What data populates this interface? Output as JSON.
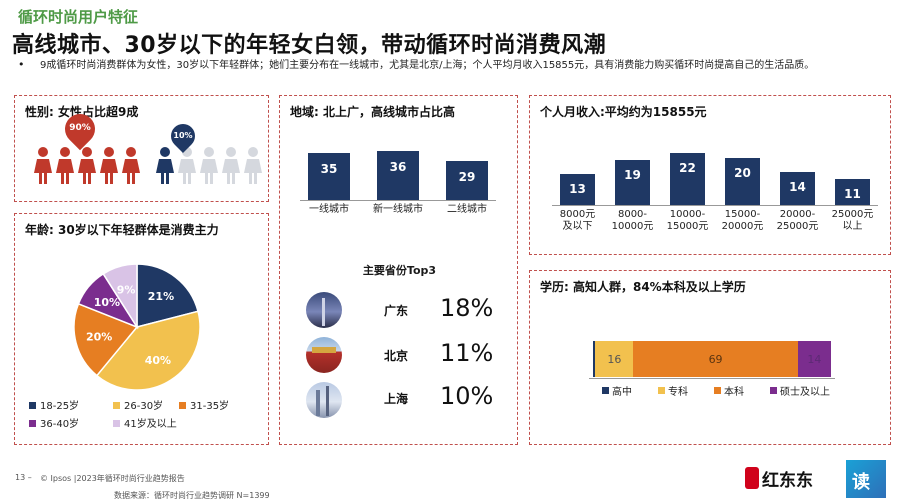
{
  "header": {
    "tag": "循环时尚用户特征",
    "title": "高线城市、30岁以下的年轻女白领，带动循环时尚消费风潮",
    "bullet": "•",
    "summary": "9成循环时尚消费群体为女性，30岁以下年轻群体；她们主要分布在一线城市，尤其是北京/上海；个人平均月收入15855元，具有消费能力购买循环时尚提高自己的生活品质。"
  },
  "gender": {
    "title": "性别: 女性占比超9成",
    "female_pct": "90%",
    "male_pct": "10%",
    "female_color": "#c0392b",
    "male_color": "#1f3864"
  },
  "region": {
    "title": "地域: 北上广，高线城市占比高",
    "top3_title": "主要省份Top3",
    "provinces": [
      {
        "name": "广东",
        "pct": "18%"
      },
      {
        "name": "北京",
        "pct": "11%"
      },
      {
        "name": "上海",
        "pct": "10%"
      }
    ]
  },
  "income": {
    "title": "个人月收入:平均约为15855元"
  },
  "age": {
    "title": "年龄: 30岁以下年轻群体是消费主力"
  },
  "education": {
    "title": "学历: 高知人群，84%本科及以上学历"
  },
  "footer": {
    "page": "13 –",
    "source_line": "© Ipsos |2023年循环时尚行业趋势报告",
    "data_source": "数据来源：循环时尚行业趋势调研 N=1399",
    "logo_text": "红东东",
    "logo_text2": "读"
  },
  "chart_data": [
    {
      "type": "bar",
      "id": "city-tier",
      "categories": [
        "一线城市",
        "新一线城市",
        "二线城市"
      ],
      "values": [
        35,
        36,
        29
      ],
      "color": "#1f3864"
    },
    {
      "type": "bar",
      "id": "income",
      "categories": [
        "8000元\n及以下",
        "8000-\n10000元",
        "10000-\n15000元",
        "15000-\n20000元",
        "20000-\n25000元",
        "25000元\n以上"
      ],
      "values": [
        13,
        19,
        22,
        20,
        14,
        11
      ],
      "color": "#1f3864"
    },
    {
      "type": "pie",
      "id": "age",
      "labels": [
        "18-25岁",
        "26-30岁",
        "31-35岁",
        "36-40岁",
        "41岁及以上"
      ],
      "values": [
        21,
        40,
        20,
        10,
        9
      ],
      "data_labels": [
        "21%",
        "40%",
        "20%",
        "10%",
        "9%"
      ],
      "colors": [
        "#1f3864",
        "#f2c14e",
        "#e67e22",
        "#7b2d8e",
        "#d9c3e6"
      ],
      "legend": "bottom"
    },
    {
      "type": "bar",
      "id": "education",
      "stacked": true,
      "orientation": "horizontal",
      "labels": [
        "高中",
        "专科",
        "本科",
        "硕士及以上"
      ],
      "values": [
        1,
        16,
        69,
        14
      ],
      "data_labels": [
        "",
        "16",
        "69",
        "14"
      ],
      "colors": [
        "#1f3864",
        "#f2c14e",
        "#e67e22",
        "#7b2d8e"
      ],
      "legend": "bottom"
    }
  ]
}
